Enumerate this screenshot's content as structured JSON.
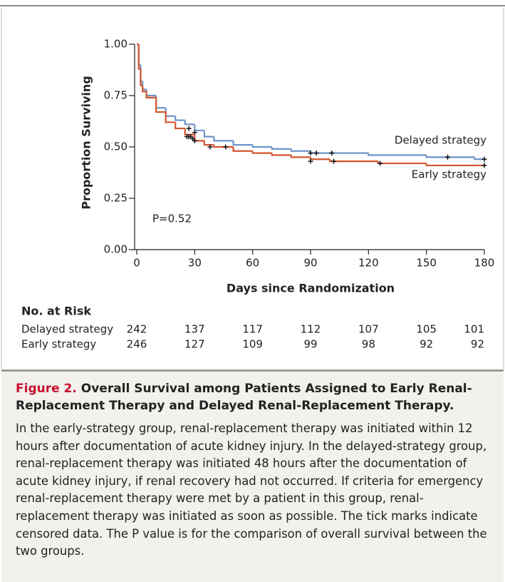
{
  "chart_data": {
    "type": "step",
    "y_label": "Proportion Surviving",
    "x_label": "Days since Randomization",
    "annotation": "P=0.52",
    "xlim": [
      0,
      180
    ],
    "ylim": [
      0,
      1
    ],
    "xticks": [
      0,
      30,
      60,
      90,
      120,
      150,
      180
    ],
    "yticks": [
      {
        "value": 0,
        "label": "0.00"
      },
      {
        "value": 0.25,
        "label": "0.25"
      },
      {
        "value": 0.5,
        "label": "0.50"
      },
      {
        "value": 0.75,
        "label": "0.75"
      },
      {
        "value": 1,
        "label": "1.00"
      }
    ],
    "censor_color": "#111111",
    "series": [
      {
        "name": "Delayed strategy",
        "color": "#6f93c9",
        "x": [
          0,
          1,
          2,
          3,
          5,
          10,
          15,
          20,
          25,
          30,
          35,
          40,
          50,
          60,
          70,
          80,
          90,
          120,
          150,
          175,
          180
        ],
        "values": [
          1,
          0.9,
          0.82,
          0.78,
          0.75,
          0.69,
          0.65,
          0.63,
          0.61,
          0.58,
          0.55,
          0.53,
          0.51,
          0.5,
          0.49,
          0.48,
          0.47,
          0.46,
          0.45,
          0.44,
          0.44
        ],
        "censored": {
          "x": [
            27,
            30,
            90,
            93,
            101,
            161,
            180
          ],
          "values": [
            0.59,
            0.57,
            0.47,
            0.47,
            0.47,
            0.45,
            0.44
          ]
        }
      },
      {
        "name": "Early strategy",
        "color": "#d2552e",
        "x": [
          0,
          1,
          2,
          3,
          5,
          10,
          15,
          20,
          25,
          30,
          35,
          40,
          50,
          60,
          70,
          80,
          90,
          100,
          125,
          150,
          180
        ],
        "values": [
          1,
          0.88,
          0.8,
          0.77,
          0.74,
          0.67,
          0.62,
          0.59,
          0.56,
          0.53,
          0.51,
          0.5,
          0.48,
          0.47,
          0.46,
          0.45,
          0.44,
          0.43,
          0.42,
          0.41,
          0.41
        ],
        "censored": {
          "x": [
            26,
            27,
            28,
            29,
            30,
            38,
            46,
            90,
            102,
            126,
            180
          ],
          "values": [
            0.55,
            0.55,
            0.55,
            0.54,
            0.53,
            0.5,
            0.5,
            0.43,
            0.43,
            0.42,
            0.41
          ]
        }
      }
    ],
    "risk_table": {
      "title": "No. at Risk",
      "rows": [
        {
          "name": "Delayed strategy",
          "values": [
            242,
            137,
            117,
            112,
            107,
            105,
            101
          ]
        },
        {
          "name": "Early strategy",
          "values": [
            246,
            127,
            109,
            99,
            98,
            92,
            92
          ]
        }
      ]
    }
  },
  "caption": {
    "label": "Figure 2.",
    "title": "Overall Survival among Patients Assigned to Early Renal-Replacement Therapy and Delayed Renal-Replacement Therapy.",
    "text": "In the early-strategy group, renal-replacement therapy was initiated within 12 hours after documentation of acute kidney injury. In the delayed-strategy group, renal-replacement therapy was initiated 48 hours after the documentation of acute kidney injury, if renal recovery had not occurred. If criteria for emergency renal-replacement therapy were met by a patient in this group, renal-replacement therapy was initiated as soon as possible. The tick marks indicate censored data. The P value is for the comparison of overall survival between the two groups."
  }
}
